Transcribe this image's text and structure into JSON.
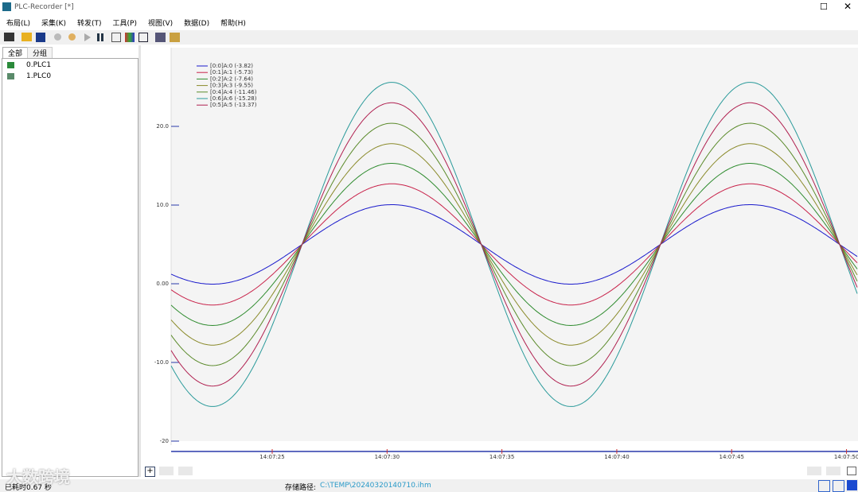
{
  "window": {
    "title": "PLC-Recorder [*]"
  },
  "menu": [
    "布局(L)",
    "采集(K)",
    "转发(T)",
    "工具(P)",
    "视图(V)",
    "数据(D)",
    "帮助(H)"
  ],
  "tabs": [
    "全部",
    "分组"
  ],
  "tree": [
    "0.PLC1",
    "1.PLC0"
  ],
  "status": {
    "elapsed": "已耗时0.67 秒",
    "path_label": "存储路径:",
    "path": "C:\\TEMP\\20240320140710.ihm"
  },
  "watermark": "大数跨境",
  "chart_data": {
    "type": "sine",
    "xlim": [
      20.6,
      50.5
    ],
    "xticks": [
      {
        "value": 25,
        "label": "14:07:25"
      },
      {
        "value": 30,
        "label": "14:07:30"
      },
      {
        "value": 35,
        "label": "14:07:35"
      },
      {
        "value": 40,
        "label": "14:07:40"
      },
      {
        "value": 45,
        "label": "14:07:45"
      },
      {
        "value": 50,
        "label": "14:07:50"
      }
    ],
    "ylim": [
      -20,
      30
    ],
    "yticks": [
      {
        "value": 20,
        "label": "20.0"
      },
      {
        "value": 10,
        "label": "10.0"
      },
      {
        "value": 0,
        "label": "0.00"
      },
      {
        "value": -10,
        "label": "-10.0"
      },
      {
        "value": -20,
        "label": "-20"
      }
    ],
    "period": 15.6,
    "phase": 26.3,
    "offset": 5,
    "series": [
      {
        "name": "[0:0]A:0 (-3.82)",
        "color": "#1a1acc",
        "amplitude": 5.05
      },
      {
        "name": "[0:1]A:1 (-5.73)",
        "color": "#c8224a",
        "amplitude": 7.7
      },
      {
        "name": "[0:2]A:2 (-7.64)",
        "color": "#2e8b2e",
        "amplitude": 10.3
      },
      {
        "name": "[0:3]A:3 (-9.55)",
        "color": "#8a8a2a",
        "amplitude": 12.8
      },
      {
        "name": "[0:4]A:4 (-11.46)",
        "color": "#5a8a2a",
        "amplitude": 15.4
      },
      {
        "name": "[0:6]A:6 (-15.28)",
        "color": "#2a9a9a",
        "amplitude": 20.6
      },
      {
        "name": "[0:5]A:5 (-13.37)",
        "color": "#b02050",
        "amplitude": 18
      }
    ]
  }
}
